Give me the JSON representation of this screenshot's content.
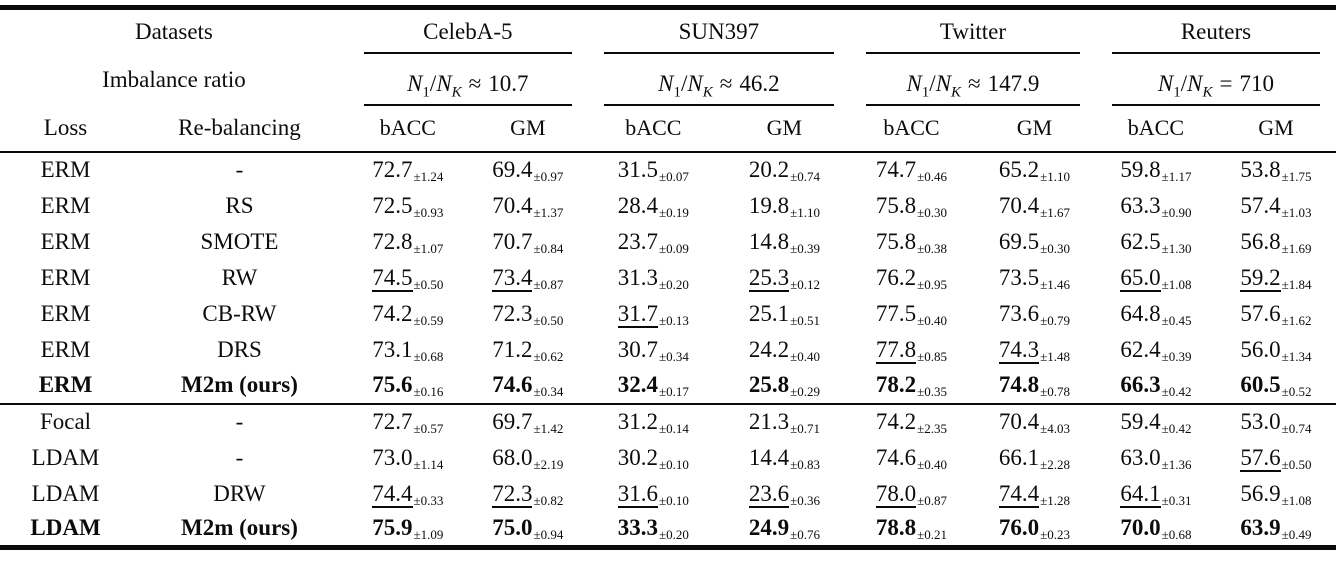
{
  "table": {
    "header": {
      "datasets_label": "Datasets",
      "imbalance_label": "Imbalance ratio",
      "loss_label": "Loss",
      "rebalancing_label": "Re-balancing",
      "metrics": [
        "bACC",
        "GM"
      ],
      "ratio_expr": {
        "v1": "N",
        "s1": "1",
        "op": "/",
        "v2": "N",
        "s2": "K"
      },
      "groups": [
        {
          "name": "CelebA-5",
          "rel": "≈",
          "val": "10.7"
        },
        {
          "name": "SUN397",
          "rel": "≈",
          "val": "46.2"
        },
        {
          "name": "Twitter",
          "rel": "≈",
          "val": "147.9"
        },
        {
          "name": "Reuters",
          "rel": "=",
          "val": "710"
        }
      ]
    },
    "sections": [
      {
        "rows": [
          {
            "loss": "ERM",
            "rebalancing": "-",
            "bold": false,
            "cells": [
              {
                "v": "72.7",
                "e": "±1.24",
                "s": ""
              },
              {
                "v": "69.4",
                "e": "±0.97",
                "s": ""
              },
              {
                "v": "31.5",
                "e": "±0.07",
                "s": ""
              },
              {
                "v": "20.2",
                "e": "±0.74",
                "s": ""
              },
              {
                "v": "74.7",
                "e": "±0.46",
                "s": ""
              },
              {
                "v": "65.2",
                "e": "±1.10",
                "s": ""
              },
              {
                "v": "59.8",
                "e": "±1.17",
                "s": ""
              },
              {
                "v": "53.8",
                "e": "±1.75",
                "s": ""
              }
            ]
          },
          {
            "loss": "ERM",
            "rebalancing": "RS",
            "bold": false,
            "cells": [
              {
                "v": "72.5",
                "e": "±0.93",
                "s": ""
              },
              {
                "v": "70.4",
                "e": "±1.37",
                "s": ""
              },
              {
                "v": "28.4",
                "e": "±0.19",
                "s": ""
              },
              {
                "v": "19.8",
                "e": "±1.10",
                "s": ""
              },
              {
                "v": "75.8",
                "e": "±0.30",
                "s": ""
              },
              {
                "v": "70.4",
                "e": "±1.67",
                "s": ""
              },
              {
                "v": "63.3",
                "e": "±0.90",
                "s": ""
              },
              {
                "v": "57.4",
                "e": "±1.03",
                "s": ""
              }
            ]
          },
          {
            "loss": "ERM",
            "rebalancing": "SMOTE",
            "bold": false,
            "cells": [
              {
                "v": "72.8",
                "e": "±1.07",
                "s": ""
              },
              {
                "v": "70.7",
                "e": "±0.84",
                "s": ""
              },
              {
                "v": "23.7",
                "e": "±0.09",
                "s": ""
              },
              {
                "v": "14.8",
                "e": "±0.39",
                "s": ""
              },
              {
                "v": "75.8",
                "e": "±0.38",
                "s": ""
              },
              {
                "v": "69.5",
                "e": "±0.30",
                "s": ""
              },
              {
                "v": "62.5",
                "e": "±1.30",
                "s": ""
              },
              {
                "v": "56.8",
                "e": "±1.69",
                "s": ""
              }
            ]
          },
          {
            "loss": "ERM",
            "rebalancing": "RW",
            "bold": false,
            "cells": [
              {
                "v": "74.5",
                "e": "±0.50",
                "s": "u"
              },
              {
                "v": "73.4",
                "e": "±0.87",
                "s": "u"
              },
              {
                "v": "31.3",
                "e": "±0.20",
                "s": ""
              },
              {
                "v": "25.3",
                "e": "±0.12",
                "s": "u"
              },
              {
                "v": "76.2",
                "e": "±0.95",
                "s": ""
              },
              {
                "v": "73.5",
                "e": "±1.46",
                "s": ""
              },
              {
                "v": "65.0",
                "e": "±1.08",
                "s": "u"
              },
              {
                "v": "59.2",
                "e": "±1.84",
                "s": "u"
              }
            ]
          },
          {
            "loss": "ERM",
            "rebalancing": "CB-RW",
            "bold": false,
            "cells": [
              {
                "v": "74.2",
                "e": "±0.59",
                "s": ""
              },
              {
                "v": "72.3",
                "e": "±0.50",
                "s": ""
              },
              {
                "v": "31.7",
                "e": "±0.13",
                "s": "u"
              },
              {
                "v": "25.1",
                "e": "±0.51",
                "s": ""
              },
              {
                "v": "77.5",
                "e": "±0.40",
                "s": ""
              },
              {
                "v": "73.6",
                "e": "±0.79",
                "s": ""
              },
              {
                "v": "64.8",
                "e": "±0.45",
                "s": ""
              },
              {
                "v": "57.6",
                "e": "±1.62",
                "s": ""
              }
            ]
          },
          {
            "loss": "ERM",
            "rebalancing": "DRS",
            "bold": false,
            "cells": [
              {
                "v": "73.1",
                "e": "±0.68",
                "s": ""
              },
              {
                "v": "71.2",
                "e": "±0.62",
                "s": ""
              },
              {
                "v": "30.7",
                "e": "±0.34",
                "s": ""
              },
              {
                "v": "24.2",
                "e": "±0.40",
                "s": ""
              },
              {
                "v": "77.8",
                "e": "±0.85",
                "s": "u"
              },
              {
                "v": "74.3",
                "e": "±1.48",
                "s": "u"
              },
              {
                "v": "62.4",
                "e": "±0.39",
                "s": ""
              },
              {
                "v": "56.0",
                "e": "±1.34",
                "s": ""
              }
            ]
          },
          {
            "loss": "ERM",
            "rebalancing": "M2m (ours)",
            "bold": true,
            "cells": [
              {
                "v": "75.6",
                "e": "±0.16",
                "s": "b"
              },
              {
                "v": "74.6",
                "e": "±0.34",
                "s": "b"
              },
              {
                "v": "32.4",
                "e": "±0.17",
                "s": "b"
              },
              {
                "v": "25.8",
                "e": "±0.29",
                "s": "b"
              },
              {
                "v": "78.2",
                "e": "±0.35",
                "s": "b"
              },
              {
                "v": "74.8",
                "e": "±0.78",
                "s": "b"
              },
              {
                "v": "66.3",
                "e": "±0.42",
                "s": "b"
              },
              {
                "v": "60.5",
                "e": "±0.52",
                "s": "b"
              }
            ]
          }
        ]
      },
      {
        "rows": [
          {
            "loss": "Focal",
            "rebalancing": "-",
            "bold": false,
            "cells": [
              {
                "v": "72.7",
                "e": "±0.57",
                "s": ""
              },
              {
                "v": "69.7",
                "e": "±1.42",
                "s": ""
              },
              {
                "v": "31.2",
                "e": "±0.14",
                "s": ""
              },
              {
                "v": "21.3",
                "e": "±0.71",
                "s": ""
              },
              {
                "v": "74.2",
                "e": "±2.35",
                "s": ""
              },
              {
                "v": "70.4",
                "e": "±4.03",
                "s": ""
              },
              {
                "v": "59.4",
                "e": "±0.42",
                "s": ""
              },
              {
                "v": "53.0",
                "e": "±0.74",
                "s": ""
              }
            ]
          },
          {
            "loss": "LDAM",
            "rebalancing": "-",
            "bold": false,
            "cells": [
              {
                "v": "73.0",
                "e": "±1.14",
                "s": ""
              },
              {
                "v": "68.0",
                "e": "±2.19",
                "s": ""
              },
              {
                "v": "30.2",
                "e": "±0.10",
                "s": ""
              },
              {
                "v": "14.4",
                "e": "±0.83",
                "s": ""
              },
              {
                "v": "74.6",
                "e": "±0.40",
                "s": ""
              },
              {
                "v": "66.1",
                "e": "±2.28",
                "s": ""
              },
              {
                "v": "63.0",
                "e": "±1.36",
                "s": ""
              },
              {
                "v": "57.6",
                "e": "±0.50",
                "s": "u"
              }
            ]
          },
          {
            "loss": "LDAM",
            "rebalancing": "DRW",
            "bold": false,
            "cells": [
              {
                "v": "74.4",
                "e": "±0.33",
                "s": "u"
              },
              {
                "v": "72.3",
                "e": "±0.82",
                "s": "u"
              },
              {
                "v": "31.6",
                "e": "±0.10",
                "s": "u"
              },
              {
                "v": "23.6",
                "e": "±0.36",
                "s": "u"
              },
              {
                "v": "78.0",
                "e": "±0.87",
                "s": "u"
              },
              {
                "v": "74.4",
                "e": "±1.28",
                "s": "u"
              },
              {
                "v": "64.1",
                "e": "±0.31",
                "s": "u"
              },
              {
                "v": "56.9",
                "e": "±1.08",
                "s": ""
              }
            ]
          },
          {
            "loss": "LDAM",
            "rebalancing": "M2m (ours)",
            "bold": true,
            "cells": [
              {
                "v": "75.9",
                "e": "±1.09",
                "s": "b"
              },
              {
                "v": "75.0",
                "e": "±0.94",
                "s": "b"
              },
              {
                "v": "33.3",
                "e": "±0.20",
                "s": "b"
              },
              {
                "v": "24.9",
                "e": "±0.76",
                "s": "b"
              },
              {
                "v": "78.8",
                "e": "±0.21",
                "s": "b"
              },
              {
                "v": "76.0",
                "e": "±0.23",
                "s": "b"
              },
              {
                "v": "70.0",
                "e": "±0.68",
                "s": "b"
              },
              {
                "v": "63.9",
                "e": "±0.49",
                "s": "b"
              }
            ]
          }
        ]
      }
    ]
  }
}
